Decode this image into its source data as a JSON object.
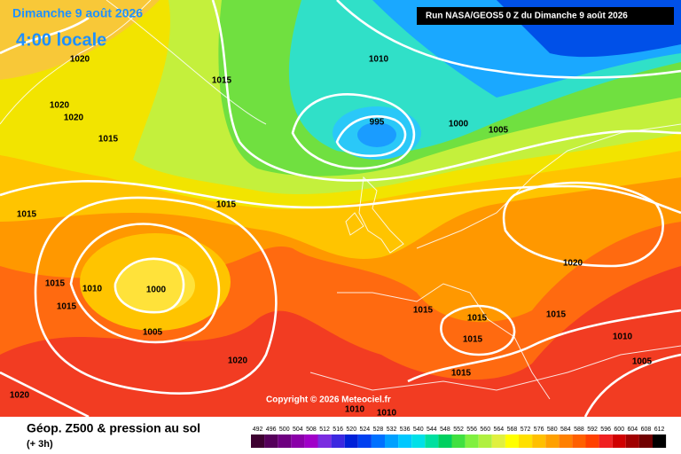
{
  "header": {
    "date": "Dimanche 9 août 2026",
    "time": "4:00 locale",
    "run": "Run NASA/GEOS5 0 Z du Dimanche 9 août 2026"
  },
  "map": {
    "isobar_labels": [
      1020,
      1015,
      1010,
      1020,
      1020,
      1015,
      995,
      1000,
      1005,
      1015,
      1015,
      1020,
      1010,
      1000,
      1015,
      1015,
      1015,
      1015,
      1015,
      1015,
      1005,
      1010,
      1005,
      1020,
      1015,
      1020,
      1010,
      1010
    ]
  },
  "copyright": "Copyright © 2026 Meteociel.fr",
  "footer": {
    "title": "Géop. Z500 & pression au sol",
    "lead": "(+ 3h)",
    "scale": {
      "labels": [
        492,
        496,
        500,
        504,
        508,
        512,
        516,
        520,
        524,
        528,
        532,
        536,
        540,
        544,
        548,
        552,
        556,
        560,
        564,
        568,
        572,
        576,
        580,
        584,
        588,
        592,
        596,
        600,
        604,
        608,
        612
      ],
      "colors": [
        "#3d0030",
        "#55005a",
        "#6e0080",
        "#8a00a8",
        "#a000c8",
        "#7a2ce0",
        "#3c28e0",
        "#0020d8",
        "#0040f0",
        "#0070ff",
        "#00a0ff",
        "#00c8ff",
        "#00e0e8",
        "#00e0a0",
        "#00d060",
        "#40e040",
        "#80f040",
        "#b0f040",
        "#e0f040",
        "#ffff00",
        "#ffe000",
        "#ffc000",
        "#ffa000",
        "#ff8000",
        "#ff6000",
        "#ff4000",
        "#f02020",
        "#d00000",
        "#a00000",
        "#700000",
        "#000000"
      ]
    }
  }
}
